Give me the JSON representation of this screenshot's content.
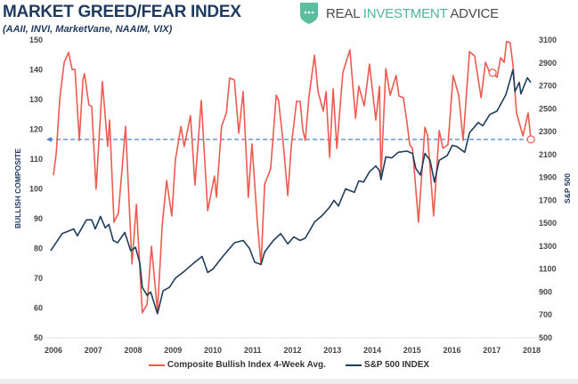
{
  "header": {
    "title": "MARKET GREED/FEAR INDEX",
    "subtitle": "(AAII, INVI, MarketVane, NAAIM, VIX)"
  },
  "logo": {
    "icon": "shield-chat-icon",
    "word1": "REAL",
    "word2": "INVESTMENT",
    "word3": "ADVICE",
    "color": "#4fb59a"
  },
  "chart_data": {
    "type": "line",
    "title": "MARKET GREED/FEAR INDEX",
    "subtitle": "(AAII, INVI, MarketVane, NAAIM, VIX)",
    "ylabel": "BULLISH COMPOSITE",
    "y2label": "S&P 500",
    "xlim": [
      2006,
      2018
    ],
    "ylim": [
      50,
      150
    ],
    "y2lim": [
      500,
      3100
    ],
    "x_ticks": [
      "2006",
      "2007",
      "2008",
      "2009",
      "2010",
      "2011",
      "2012",
      "2013",
      "2014",
      "2015",
      "2016",
      "2017",
      "2018"
    ],
    "y_ticks": [
      "150",
      "140",
      "130",
      "120",
      "110",
      "100",
      "90",
      "80",
      "70",
      "60",
      "50"
    ],
    "y2_ticks": [
      "3100",
      "2900",
      "2700",
      "2500",
      "2300",
      "2100",
      "1900",
      "1700",
      "1500",
      "1300",
      "1100",
      "900",
      "700",
      "500"
    ],
    "grid": false,
    "legend_position": "bottom",
    "reference_line": {
      "axis": "left",
      "value": 116.6,
      "style": "dashed",
      "color": "#4a86c8"
    },
    "series": [
      {
        "name": "Composite Bullish Index 4-Week Avg.",
        "axis": "left",
        "color": "#ee5a4f",
        "points": [
          [
            2006.0,
            104.6
          ],
          [
            2006.07,
            111.8
          ],
          [
            2006.16,
            130.6
          ],
          [
            2006.27,
            142.5
          ],
          [
            2006.38,
            145.8
          ],
          [
            2006.47,
            140.1
          ],
          [
            2006.54,
            140.1
          ],
          [
            2006.65,
            116.3
          ],
          [
            2006.74,
            136.6
          ],
          [
            2006.78,
            138.7
          ],
          [
            2006.89,
            128.2
          ],
          [
            2006.96,
            127.6
          ],
          [
            2007.07,
            99.9
          ],
          [
            2007.23,
            136.0
          ],
          [
            2007.36,
            114.2
          ],
          [
            2007.41,
            123.1
          ],
          [
            2007.52,
            88.8
          ],
          [
            2007.63,
            91.8
          ],
          [
            2007.81,
            121.0
          ],
          [
            2007.97,
            74.8
          ],
          [
            2008.08,
            94.8
          ],
          [
            2008.23,
            58.4
          ],
          [
            2008.35,
            61.3
          ],
          [
            2008.46,
            80.7
          ],
          [
            2008.61,
            59.0
          ],
          [
            2008.73,
            87.9
          ],
          [
            2008.84,
            102.8
          ],
          [
            2008.97,
            90.9
          ],
          [
            2009.06,
            109.7
          ],
          [
            2009.2,
            121.0
          ],
          [
            2009.28,
            114.2
          ],
          [
            2009.44,
            124.6
          ],
          [
            2009.55,
            101.3
          ],
          [
            2009.71,
            129.7
          ],
          [
            2009.87,
            92.7
          ],
          [
            2010.04,
            104.3
          ],
          [
            2010.09,
            97.2
          ],
          [
            2010.22,
            121.0
          ],
          [
            2010.34,
            125.5
          ],
          [
            2010.42,
            137.2
          ],
          [
            2010.54,
            136.6
          ],
          [
            2010.65,
            118.7
          ],
          [
            2010.76,
            132.7
          ],
          [
            2010.89,
            97.2
          ],
          [
            2010.98,
            115.1
          ],
          [
            2011.12,
            88.2
          ],
          [
            2011.21,
            74.5
          ],
          [
            2011.3,
            101.6
          ],
          [
            2011.45,
            106.7
          ],
          [
            2011.59,
            131.5
          ],
          [
            2011.65,
            129.7
          ],
          [
            2011.77,
            114.8
          ],
          [
            2011.88,
            97.8
          ],
          [
            2011.97,
            114.8
          ],
          [
            2012.1,
            129.4
          ],
          [
            2012.19,
            129.4
          ],
          [
            2012.26,
            119.6
          ],
          [
            2012.32,
            116.3
          ],
          [
            2012.41,
            130.6
          ],
          [
            2012.55,
            144.9
          ],
          [
            2012.64,
            132.7
          ],
          [
            2012.77,
            126.1
          ],
          [
            2012.84,
            132.7
          ],
          [
            2012.93,
            110.6
          ],
          [
            2013.02,
            133.6
          ],
          [
            2013.11,
            113.6
          ],
          [
            2013.26,
            139.0
          ],
          [
            2013.44,
            146.7
          ],
          [
            2013.58,
            123.7
          ],
          [
            2013.66,
            134.5
          ],
          [
            2013.8,
            127.9
          ],
          [
            2013.93,
            141.9
          ],
          [
            2014.09,
            123.1
          ],
          [
            2014.18,
            134.5
          ],
          [
            2014.22,
            103.7
          ],
          [
            2014.34,
            140.4
          ],
          [
            2014.45,
            131.5
          ],
          [
            2014.6,
            138.1
          ],
          [
            2014.67,
            131.2
          ],
          [
            2014.78,
            130.6
          ],
          [
            2014.87,
            122.5
          ],
          [
            2014.94,
            114.8
          ],
          [
            2015.01,
            113.6
          ],
          [
            2015.16,
            88.8
          ],
          [
            2015.32,
            120.7
          ],
          [
            2015.39,
            117.8
          ],
          [
            2015.54,
            90.9
          ],
          [
            2015.68,
            119.6
          ],
          [
            2015.77,
            113.6
          ],
          [
            2015.9,
            114.8
          ],
          [
            2016.03,
            138.1
          ],
          [
            2016.17,
            131.5
          ],
          [
            2016.28,
            116.3
          ],
          [
            2016.44,
            146.1
          ],
          [
            2016.57,
            144.6
          ],
          [
            2016.73,
            130.6
          ],
          [
            2016.84,
            142.5
          ],
          [
            2016.95,
            139.0
          ],
          [
            2017.02,
            139.0
          ],
          [
            2017.13,
            137.5
          ],
          [
            2017.22,
            144.0
          ],
          [
            2017.31,
            142.5
          ],
          [
            2017.37,
            149.5
          ],
          [
            2017.46,
            149.1
          ],
          [
            2017.53,
            141.6
          ],
          [
            2017.62,
            125.5
          ],
          [
            2017.78,
            117.8
          ],
          [
            2017.91,
            125.5
          ],
          [
            2017.98,
            116.6
          ]
        ],
        "markers": [
          [
            2017.02,
            139.0
          ],
          [
            2017.98,
            116.6
          ]
        ]
      },
      {
        "name": "S&P 500 INDEX",
        "axis": "right",
        "color": "#1f3d5c",
        "points": [
          [
            2005.93,
            1260
          ],
          [
            2006.22,
            1410
          ],
          [
            2006.51,
            1450
          ],
          [
            2006.6,
            1390
          ],
          [
            2006.83,
            1530
          ],
          [
            2006.96,
            1530
          ],
          [
            2007.05,
            1450
          ],
          [
            2007.18,
            1560
          ],
          [
            2007.3,
            1460
          ],
          [
            2007.39,
            1490
          ],
          [
            2007.5,
            1350
          ],
          [
            2007.61,
            1330
          ],
          [
            2007.79,
            1420
          ],
          [
            2007.94,
            1260
          ],
          [
            2008.06,
            1290
          ],
          [
            2008.17,
            1150
          ],
          [
            2008.23,
            940
          ],
          [
            2008.35,
            870
          ],
          [
            2008.44,
            900
          ],
          [
            2008.61,
            710
          ],
          [
            2008.75,
            910
          ],
          [
            2008.91,
            940
          ],
          [
            2009.06,
            1020
          ],
          [
            2009.28,
            1080
          ],
          [
            2009.51,
            1150
          ],
          [
            2009.73,
            1210
          ],
          [
            2009.87,
            1070
          ],
          [
            2010.0,
            1100
          ],
          [
            2010.25,
            1210
          ],
          [
            2010.54,
            1330
          ],
          [
            2010.76,
            1350
          ],
          [
            2010.92,
            1280
          ],
          [
            2011.05,
            1160
          ],
          [
            2011.21,
            1140
          ],
          [
            2011.3,
            1250
          ],
          [
            2011.52,
            1350
          ],
          [
            2011.7,
            1410
          ],
          [
            2011.88,
            1320
          ],
          [
            2012.03,
            1380
          ],
          [
            2012.19,
            1350
          ],
          [
            2012.32,
            1370
          ],
          [
            2012.55,
            1510
          ],
          [
            2012.75,
            1570
          ],
          [
            2012.93,
            1640
          ],
          [
            2013.04,
            1700
          ],
          [
            2013.15,
            1650
          ],
          [
            2013.33,
            1800
          ],
          [
            2013.55,
            1770
          ],
          [
            2013.66,
            1870
          ],
          [
            2013.78,
            1860
          ],
          [
            2013.93,
            1950
          ],
          [
            2014.09,
            2000
          ],
          [
            2014.18,
            1960
          ],
          [
            2014.22,
            1880
          ],
          [
            2014.34,
            2080
          ],
          [
            2014.49,
            2070
          ],
          [
            2014.65,
            2120
          ],
          [
            2014.87,
            2130
          ],
          [
            2015.01,
            2110
          ],
          [
            2015.09,
            1980
          ],
          [
            2015.21,
            1920
          ],
          [
            2015.32,
            2110
          ],
          [
            2015.45,
            2050
          ],
          [
            2015.56,
            1860
          ],
          [
            2015.68,
            2050
          ],
          [
            2015.88,
            2090
          ],
          [
            2016.01,
            2180
          ],
          [
            2016.12,
            2170
          ],
          [
            2016.32,
            2120
          ],
          [
            2016.44,
            2290
          ],
          [
            2016.66,
            2380
          ],
          [
            2016.77,
            2350
          ],
          [
            2016.95,
            2450
          ],
          [
            2017.13,
            2480
          ],
          [
            2017.35,
            2620
          ],
          [
            2017.53,
            2840
          ],
          [
            2017.58,
            2650
          ],
          [
            2017.69,
            2730
          ],
          [
            2017.73,
            2630
          ],
          [
            2017.89,
            2770
          ],
          [
            2017.98,
            2730
          ]
        ]
      }
    ]
  }
}
